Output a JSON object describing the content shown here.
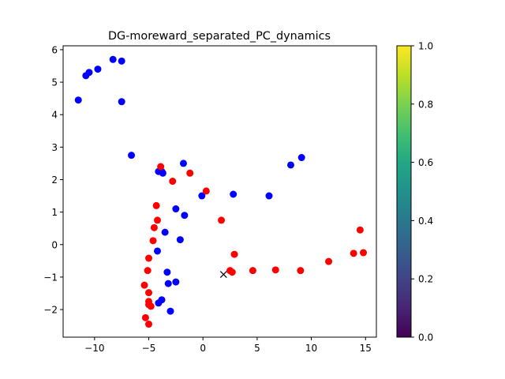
{
  "chart_data": {
    "type": "scatter",
    "title": "DG-moreward_separated_PC_dynamics",
    "xlabel": "",
    "ylabel": "",
    "xlim": [
      -12.9,
      16.0
    ],
    "ylim": [
      -2.85,
      6.12
    ],
    "xticks": [
      -10,
      -5,
      0,
      5,
      10,
      15
    ],
    "yticks": [
      -2,
      -1,
      0,
      1,
      2,
      3,
      4,
      5,
      6
    ],
    "xtick_labels": [
      "−10",
      "−5",
      "0",
      "5",
      "10",
      "15"
    ],
    "ytick_labels": [
      "−2",
      "−1",
      "0",
      "1",
      "2",
      "3",
      "4",
      "5",
      "6"
    ],
    "grid": false,
    "legend": false,
    "series": [
      {
        "color": "#0000ff",
        "marker": "circle",
        "points": [
          [
            -11.5,
            4.45
          ],
          [
            -10.8,
            5.2
          ],
          [
            -10.5,
            5.3
          ],
          [
            -9.7,
            5.4
          ],
          [
            -8.3,
            5.7
          ],
          [
            -7.5,
            5.65
          ],
          [
            -7.5,
            4.4
          ],
          [
            -6.6,
            2.75
          ],
          [
            -4.1,
            2.25
          ],
          [
            -3.7,
            2.2
          ],
          [
            -3.8,
            2.25
          ],
          [
            -1.8,
            2.5
          ],
          [
            -2.5,
            1.1
          ],
          [
            -1.7,
            0.9
          ],
          [
            -3.5,
            0.38
          ],
          [
            -2.1,
            0.15
          ],
          [
            -4.2,
            -0.2
          ],
          [
            -3.3,
            -0.85
          ],
          [
            -3.2,
            -1.2
          ],
          [
            -2.5,
            -1.15
          ],
          [
            -3.8,
            -1.7
          ],
          [
            -4.1,
            -1.8
          ],
          [
            -3.0,
            -2.05
          ],
          [
            -0.1,
            1.5
          ],
          [
            2.8,
            1.55
          ],
          [
            6.1,
            1.5
          ],
          [
            8.1,
            2.45
          ],
          [
            9.1,
            2.68
          ]
        ]
      },
      {
        "color": "#ff0000",
        "marker": "circle",
        "points": [
          [
            -3.9,
            2.4
          ],
          [
            -1.2,
            2.2
          ],
          [
            -2.8,
            1.95
          ],
          [
            0.3,
            1.65
          ],
          [
            -4.3,
            1.2
          ],
          [
            -4.2,
            0.75
          ],
          [
            -4.5,
            0.52
          ],
          [
            -4.6,
            0.12
          ],
          [
            -5.0,
            -0.42
          ],
          [
            -5.1,
            -0.8
          ],
          [
            -5.4,
            -1.25
          ],
          [
            -5.0,
            -1.48
          ],
          [
            -5.0,
            -1.75
          ],
          [
            -5.0,
            -1.85
          ],
          [
            -4.8,
            -1.9
          ],
          [
            -5.3,
            -2.25
          ],
          [
            -5.0,
            -2.45
          ],
          [
            1.7,
            0.75
          ],
          [
            2.9,
            -0.3
          ],
          [
            2.5,
            -0.8
          ],
          [
            2.7,
            -0.85
          ],
          [
            4.6,
            -0.8
          ],
          [
            6.7,
            -0.78
          ],
          [
            9.0,
            -0.8
          ],
          [
            11.6,
            -0.52
          ],
          [
            13.9,
            -0.27
          ],
          [
            14.5,
            0.45
          ],
          [
            14.8,
            -0.25
          ]
        ]
      },
      {
        "color": "#000000",
        "marker": "x",
        "points": [
          [
            1.9,
            -0.92
          ]
        ]
      }
    ],
    "colorbar": {
      "colormap": "viridis",
      "range": [
        0.0,
        1.0
      ],
      "ticks": [
        0.0,
        0.2,
        0.4,
        0.6,
        0.8,
        1.0
      ],
      "tick_labels": [
        "0.0",
        "0.2",
        "0.4",
        "0.6",
        "0.8",
        "1.0"
      ]
    }
  }
}
